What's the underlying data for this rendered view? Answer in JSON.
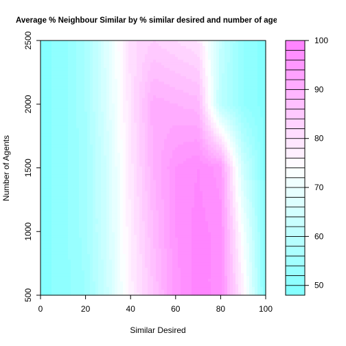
{
  "chart_data": {
    "type": "heatmap",
    "title": "Average % Neighbour Similar by % similar desired and number of agents",
    "xlabel": "Similar Desired",
    "ylabel": "Number of Agents",
    "xlim": [
      0,
      100
    ],
    "ylim": [
      500,
      2500
    ],
    "x_ticks": [
      "0",
      "20",
      "40",
      "60",
      "80",
      "100"
    ],
    "y_ticks": [
      "500",
      "1000",
      "1500",
      "2000",
      "2500"
    ],
    "x": [
      0,
      10,
      20,
      30,
      40,
      50,
      60,
      70,
      80,
      90,
      100
    ],
    "y": [
      500,
      1000,
      1500,
      2000,
      2500
    ],
    "z": [
      [
        49,
        51,
        54,
        64,
        77,
        86,
        95,
        99,
        97,
        77,
        49
      ],
      [
        49,
        51,
        55,
        65,
        78,
        88,
        96,
        99,
        97,
        72,
        49
      ],
      [
        49,
        51,
        55,
        65,
        79,
        90,
        96,
        98,
        95,
        64,
        49
      ],
      [
        49,
        51,
        56,
        67,
        80,
        91,
        90,
        89,
        60,
        52,
        49
      ],
      [
        49,
        51,
        56,
        68,
        81,
        84,
        82,
        80,
        62,
        52,
        49
      ]
    ],
    "zlim": [
      48,
      100
    ],
    "legend": {
      "position": "right",
      "ticks": [
        "50",
        "60",
        "70",
        "80",
        "90",
        "100"
      ],
      "levels": [
        48,
        50,
        52,
        54,
        56,
        58,
        60,
        62,
        64,
        66,
        68,
        70,
        72,
        74,
        76,
        78,
        80,
        82,
        84,
        86,
        88,
        90,
        92,
        94,
        96,
        98,
        100
      ]
    },
    "colors": {
      "low": "#80ffff",
      "mid": "#ffffff",
      "high": "#ff80ff"
    }
  }
}
